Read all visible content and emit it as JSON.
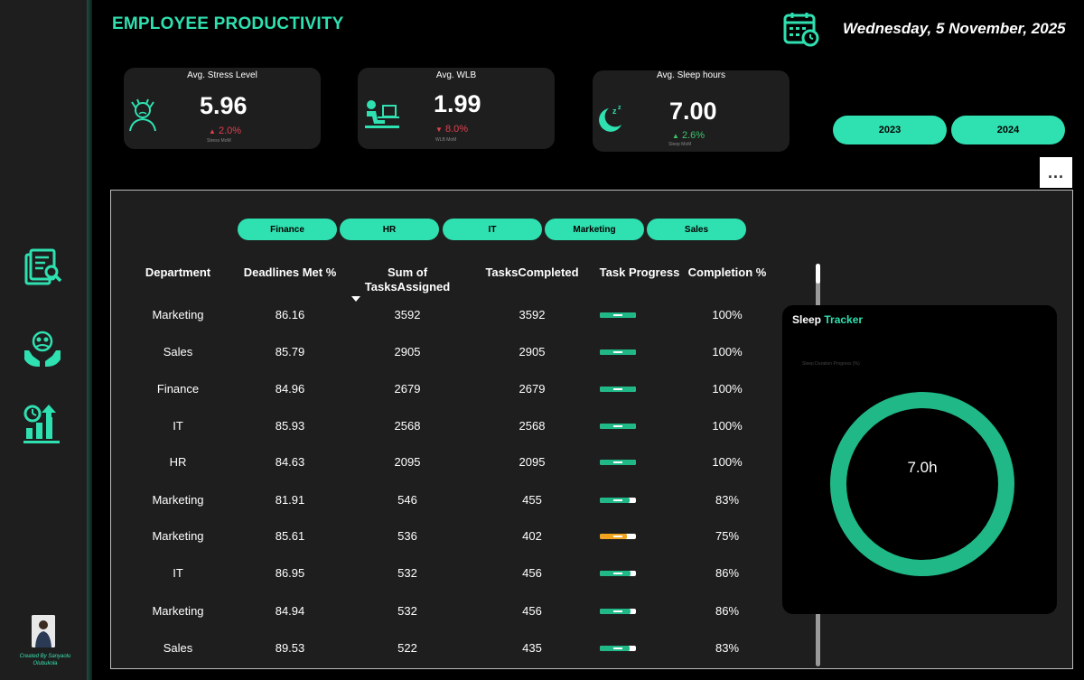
{
  "header": {
    "title": "EMPLOYEE PRODUCTIVITY",
    "date": "Wednesday, 5 November, 2025"
  },
  "kpis": [
    {
      "label": "Avg. Stress Level",
      "value": "5.96",
      "arrow": "▲",
      "delta": "2.0%",
      "sub": "Stress MoM",
      "delta_color": "#e0404f"
    },
    {
      "label": "Avg. WLB",
      "value": "1.99",
      "arrow": "▼",
      "delta": "8.0%",
      "sub": "WLB MoM",
      "delta_color": "#e0404f"
    },
    {
      "label": "Avg. Sleep hours",
      "value": "7.00",
      "arrow": "▲",
      "delta": "2.6%",
      "sub": "Sleep MoM",
      "delta_color": "#3ac46a"
    }
  ],
  "year_filters": [
    "2023",
    "2024"
  ],
  "more_label": "...",
  "department_filters": [
    "Finance",
    "HR",
    "IT",
    "Marketing",
    "Sales"
  ],
  "table": {
    "headers": {
      "department": "Department",
      "deadlines": "Deadlines Met %",
      "assigned_1": "Sum of",
      "assigned_2": "TasksAssigned",
      "completed": "TasksCompleted",
      "progress": "Task Progress",
      "completion": "Completion %"
    },
    "rows": [
      {
        "department": "Marketing",
        "deadlines": "86.16",
        "assigned": "3592",
        "completed": "3592",
        "progress": 1.0,
        "completion": "100%"
      },
      {
        "department": "Sales",
        "deadlines": "85.79",
        "assigned": "2905",
        "completed": "2905",
        "progress": 1.0,
        "completion": "100%"
      },
      {
        "department": "Finance",
        "deadlines": "84.96",
        "assigned": "2679",
        "completed": "2679",
        "progress": 1.0,
        "completion": "100%"
      },
      {
        "department": "IT",
        "deadlines": "85.93",
        "assigned": "2568",
        "completed": "2568",
        "progress": 1.0,
        "completion": "100%"
      },
      {
        "department": "HR",
        "deadlines": "84.63",
        "assigned": "2095",
        "completed": "2095",
        "progress": 1.0,
        "completion": "100%"
      },
      {
        "department": "Marketing",
        "deadlines": "81.91",
        "assigned": "546",
        "completed": "455",
        "progress": 0.83,
        "completion": "83%"
      },
      {
        "department": "Marketing",
        "deadlines": "85.61",
        "assigned": "536",
        "completed": "402",
        "progress": 0.75,
        "completion": "75%"
      },
      {
        "department": "IT",
        "deadlines": "86.95",
        "assigned": "532",
        "completed": "456",
        "progress": 0.86,
        "completion": "86%"
      },
      {
        "department": "Marketing",
        "deadlines": "84.94",
        "assigned": "532",
        "completed": "456",
        "progress": 0.86,
        "completion": "86%"
      },
      {
        "department": "Sales",
        "deadlines": "89.53",
        "assigned": "522",
        "completed": "435",
        "progress": 0.83,
        "completion": "83%"
      }
    ]
  },
  "sleep_tracker": {
    "title_1": "Sleep",
    "title_2": " Tracker",
    "subtitle": "Sleep Duration Progress (%)",
    "center_label": "7.0h",
    "progress": 1.0
  },
  "footer": {
    "credit": "Created By Sanyaolu Olubukola"
  },
  "colors": {
    "accent": "#2fe0b0",
    "ring": "#1fb886",
    "bar_green": "#1fb886",
    "bar_orange": "#f2a31f"
  }
}
